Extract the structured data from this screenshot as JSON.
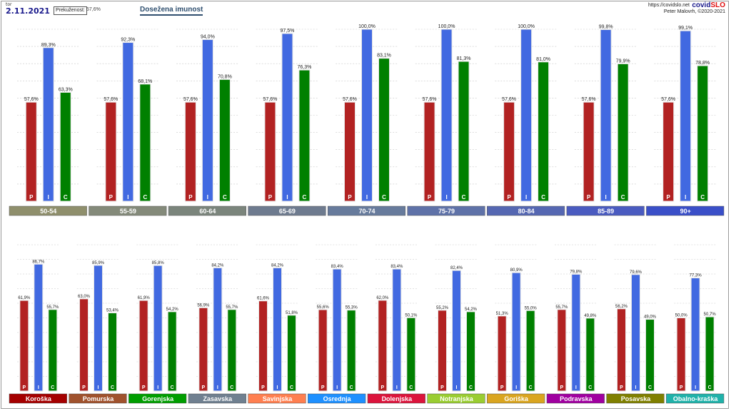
{
  "header": {
    "day": "tor",
    "date": "2.11.2021",
    "legend_label": "Prekuženost:",
    "legend_value": "57,6%",
    "title": "Dosežena imunost",
    "url": "https://covidslo.net",
    "brand_a": "covid",
    "brand_b": "SLO",
    "author": "Peter Malovrh, ©2020-2021"
  },
  "colors": {
    "P": "#b22222",
    "I": "#4169e1",
    "C": "#008000"
  },
  "chart_data": [
    {
      "type": "bar",
      "title": "",
      "series_labels": [
        "P",
        "I",
        "C"
      ],
      "categories": [
        "50-54",
        "55-59",
        "60-64",
        "65-69",
        "70-74",
        "75-79",
        "80-84",
        "85-89",
        "90+"
      ],
      "category_colors": [
        "#8f8f6c",
        "#848a7a",
        "#7b857c",
        "#6e7b8f",
        "#677b9c",
        "#5f72a8",
        "#5567b2",
        "#4a5bc0",
        "#3a4fc8"
      ],
      "series": [
        {
          "values": [
            57.6,
            57.6,
            57.6,
            57.6,
            57.6,
            57.6,
            57.6,
            57.6,
            57.6
          ]
        },
        {
          "values": [
            89.3,
            92.3,
            94.0,
            97.5,
            100.0,
            100.0,
            100.0,
            99.8,
            99.1
          ]
        },
        {
          "values": [
            63.3,
            68.1,
            70.8,
            76.3,
            83.1,
            81.3,
            81.0,
            79.9,
            78.8
          ]
        }
      ],
      "value_labels": [
        [
          "57,6%",
          "57,6%",
          "57,6%",
          "57,6%",
          "57,6%",
          "57,6%",
          "57,6%",
          "57,6%",
          "57,6%"
        ],
        [
          "89,3%",
          "92,3%",
          "94,0%",
          "97,5%",
          "100,0%",
          "100,0%",
          "100,0%",
          "99,8%",
          "99,1%"
        ],
        [
          "63,3%",
          "68,1%",
          "70,8%",
          "76,3%",
          "83,1%",
          "81,3%",
          "81,0%",
          "79,9%",
          "78,8%"
        ]
      ],
      "ylim": [
        0,
        100
      ],
      "grid": true
    },
    {
      "type": "bar",
      "title": "",
      "series_labels": [
        "P",
        "I",
        "C"
      ],
      "categories": [
        "Koroška",
        "Pomurska",
        "Gorenjska",
        "Zasavska",
        "Savinjska",
        "Osrednja",
        "Dolenjska",
        "Notranjska",
        "Goriška",
        "Podravska",
        "Posavska",
        "Obalno-kraška"
      ],
      "category_colors": [
        "#a50000",
        "#a0522d",
        "#009e00",
        "#708090",
        "#ff7f50",
        "#1e90ff",
        "#dc143c",
        "#9acd32",
        "#daa520",
        "#a000a0",
        "#808000",
        "#20b2aa"
      ],
      "series": [
        {
          "values": [
            61.9,
            63.0,
            61.9,
            56.9,
            61.6,
            55.6,
            62.0,
            55.2,
            51.3,
            55.7,
            56.2,
            50.0
          ]
        },
        {
          "values": [
            86.7,
            85.9,
            85.8,
            84.2,
            84.2,
            83.4,
            83.4,
            82.4,
            80.9,
            79.8,
            79.6,
            77.3
          ]
        },
        {
          "values": [
            55.7,
            53.4,
            54.2,
            55.7,
            51.8,
            55.3,
            50.1,
            54.2,
            55.0,
            49.8,
            49.0,
            50.7
          ]
        }
      ],
      "value_labels": [
        [
          "61,9%",
          "63,0%",
          "61,9%",
          "56,9%",
          "61,6%",
          "55,6%",
          "62,0%",
          "55,2%",
          "51,3%",
          "55,7%",
          "56,2%",
          "50,0%"
        ],
        [
          "86,7%",
          "85,9%",
          "85,8%",
          "84,2%",
          "84,2%",
          "83,4%",
          "83,4%",
          "82,4%",
          "80,9%",
          "79,8%",
          "79,6%",
          "77,3%"
        ],
        [
          "55,7%",
          "53,4%",
          "54,2%",
          "55,7%",
          "51,8%",
          "55,3%",
          "50,1%",
          "54,2%",
          "55,0%",
          "49,8%",
          "49,0%",
          "50,7%"
        ]
      ],
      "ylim": [
        0,
        100
      ],
      "grid": true
    }
  ]
}
